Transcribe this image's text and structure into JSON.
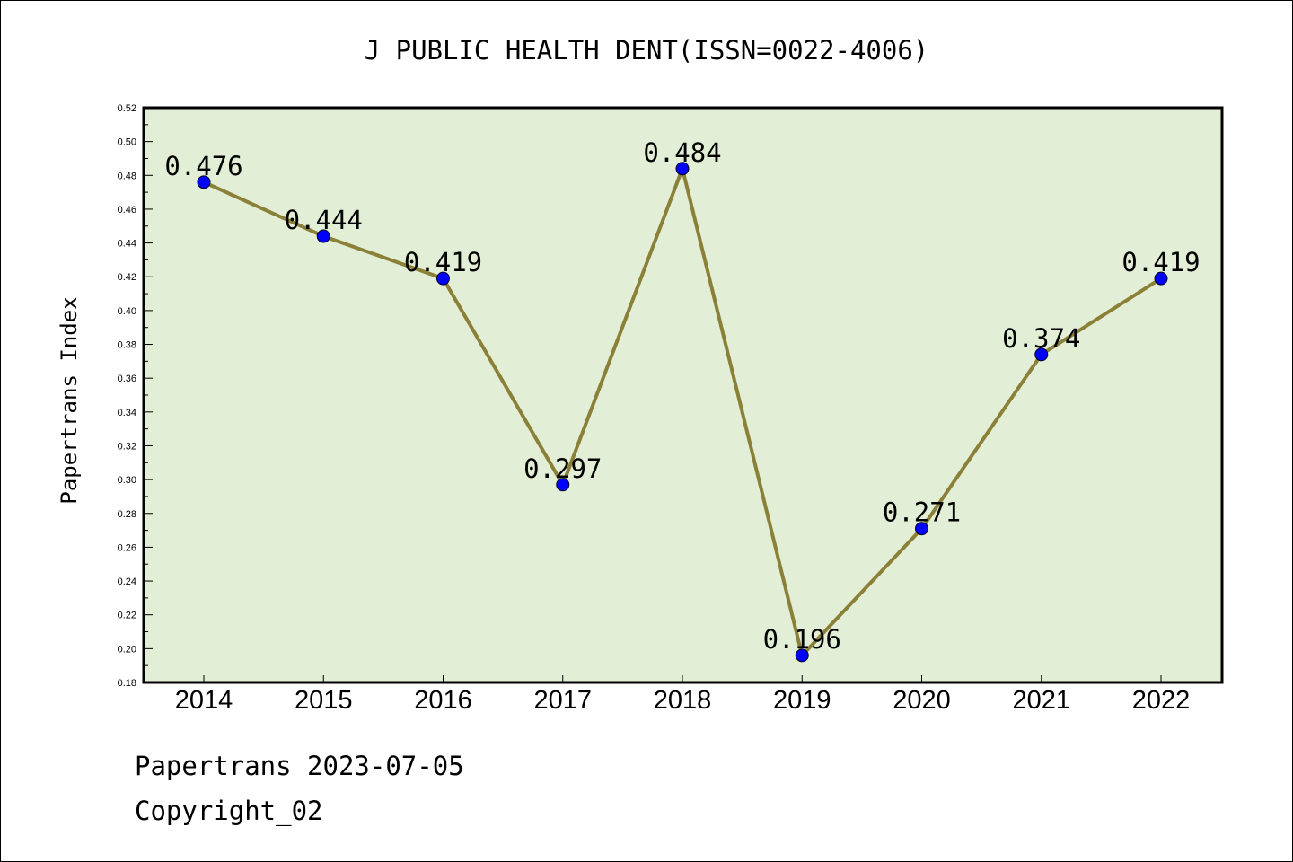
{
  "chart_data": {
    "type": "line",
    "title": "J PUBLIC HEALTH DENT(ISSN=0022-4006)",
    "xlabel": "",
    "ylabel": "Papertrans Index",
    "categories": [
      "2014",
      "2015",
      "2016",
      "2017",
      "2018",
      "2019",
      "2020",
      "2021",
      "2022"
    ],
    "series": [
      {
        "values": [
          0.476,
          0.444,
          0.419,
          0.297,
          0.484,
          0.196,
          0.271,
          0.374,
          0.419
        ]
      }
    ],
    "data_labels": [
      "0.476",
      "0.444",
      "0.419",
      "0.297",
      "0.484",
      "0.196",
      "0.271",
      "0.374",
      "0.419"
    ],
    "ylim": [
      0.18,
      0.52
    ],
    "yticks": [
      "0.18",
      "0.20",
      "0.22",
      "0.24",
      "0.26",
      "0.28",
      "0.30",
      "0.32",
      "0.34",
      "0.36",
      "0.38",
      "0.40",
      "0.42",
      "0.44",
      "0.46",
      "0.48",
      "0.50",
      "0.52"
    ],
    "grid": false,
    "colors": {
      "plot_background": "#e2efd6",
      "line": "#8b8038",
      "marker": "#0000ff"
    }
  },
  "footer": {
    "date_line": "Papertrans 2023-07-05",
    "copyright": "Copyright_02"
  }
}
